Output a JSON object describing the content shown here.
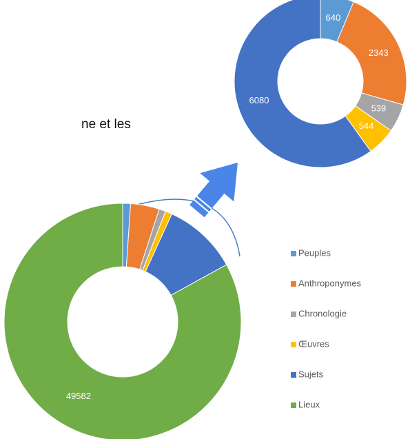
{
  "page_text": "ne et les",
  "chart_data": [
    {
      "type": "donut",
      "categories": [
        "Peuples",
        "Anthroponymes",
        "Chronologie",
        "Œuvres",
        "Sujets",
        "Lieux"
      ],
      "values": [
        640,
        2343,
        539,
        544,
        6080,
        49582
      ],
      "colors": [
        "#5b9bd5",
        "#ed7d31",
        "#a5a5a5",
        "#ffc000",
        "#4472c4",
        "#70ad47"
      ],
      "data_labels": [
        false,
        false,
        false,
        false,
        false,
        true
      ],
      "legend": "right"
    },
    {
      "type": "donut",
      "categories": [
        "Peuples",
        "Anthroponymes",
        "Chronologie",
        "Œuvres",
        "Sujets"
      ],
      "values": [
        640,
        2343,
        539,
        544,
        6080
      ],
      "colors": [
        "#5b9bd5",
        "#ed7d31",
        "#a5a5a5",
        "#ffc000",
        "#4472c4"
      ],
      "data_labels": [
        true,
        true,
        true,
        true,
        true
      ]
    }
  ]
}
